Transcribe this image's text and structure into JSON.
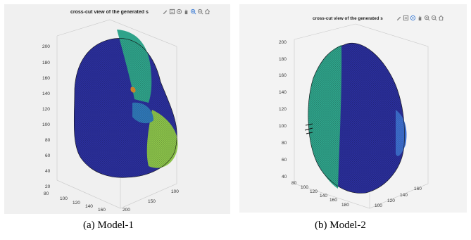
{
  "figures": [
    {
      "title": "cross-cut view of the generated s",
      "caption": "(a) Model-1",
      "z_ticks": [
        "200",
        "180",
        "160",
        "140",
        "120",
        "100",
        "80",
        "60",
        "40",
        "20"
      ],
      "y_ticks": [
        "80",
        "100",
        "120",
        "140",
        "160"
      ],
      "x_ticks": [
        "100",
        "150",
        "200"
      ]
    },
    {
      "title": "cross-cut view of the generated s",
      "caption": "(b) Model-2",
      "z_ticks": [
        "200",
        "180",
        "160",
        "140",
        "120",
        "100",
        "80",
        "60",
        "40"
      ],
      "y_ticks": [
        "80",
        "100",
        "120",
        "140",
        "160",
        "180"
      ],
      "x_ticks": [
        "100",
        "120",
        "140",
        "160"
      ]
    }
  ],
  "toolbar_icons": [
    "brush-icon",
    "data-tips-icon",
    "rotate-3d-icon",
    "pan-icon",
    "zoom-in-icon",
    "zoom-out-icon",
    "home-icon"
  ],
  "colors": {
    "surface_blue": "#2b2f9b",
    "surface_teal": "#2fa38a",
    "surface_green": "#8bc24a",
    "panel_bg": "#f0f0f0"
  }
}
